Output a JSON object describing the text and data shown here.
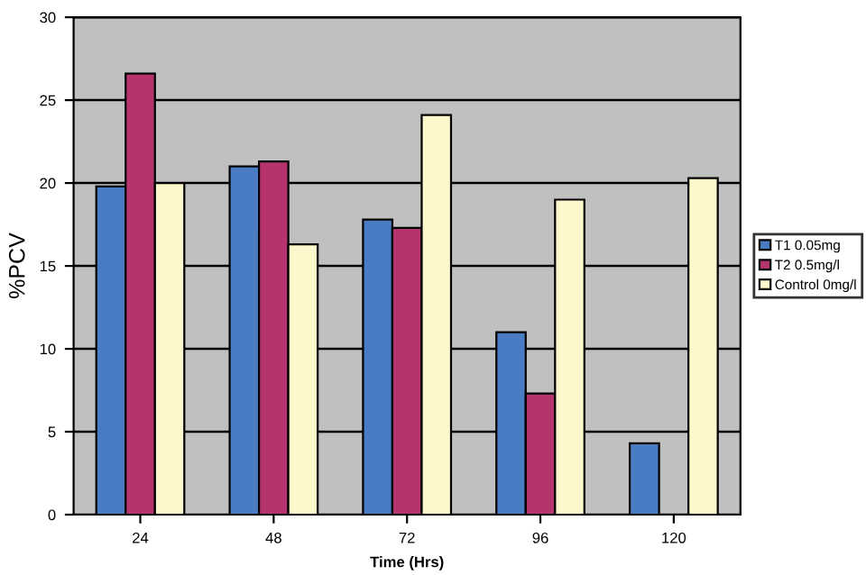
{
  "chart_data": {
    "type": "bar",
    "categories": [
      "24",
      "48",
      "72",
      "96",
      "120"
    ],
    "xlabel": "Time (Hrs)",
    "ylabel": "%PCV",
    "ylim": [
      0,
      30
    ],
    "yticks": [
      0,
      5,
      10,
      15,
      20,
      25,
      30
    ],
    "grid": "y",
    "legend": "right",
    "series": [
      {
        "name": "T1 0.05mg",
        "color": "#4a7cc4",
        "values": [
          19.8,
          21.0,
          17.8,
          11.0,
          4.3
        ]
      },
      {
        "name": "T2 0.5mg/l",
        "color": "#b5346e",
        "values": [
          26.6,
          21.3,
          17.3,
          7.3,
          null
        ]
      },
      {
        "name": "Control 0mg/l",
        "color": "#fdf7cc",
        "values": [
          20.0,
          16.3,
          24.1,
          19.0,
          20.3
        ]
      }
    ]
  }
}
